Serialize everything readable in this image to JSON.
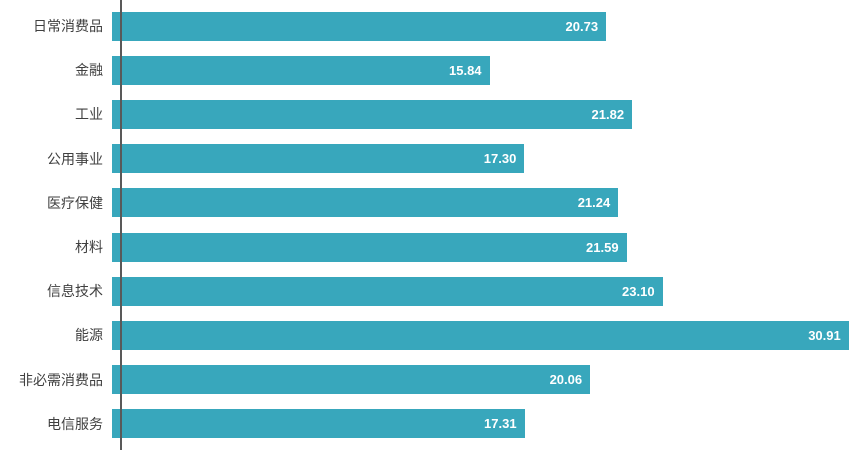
{
  "chart_data": {
    "type": "bar",
    "orientation": "horizontal",
    "title": "",
    "xlabel": "",
    "ylabel": "",
    "categories": [
      "日常消费品",
      "金融",
      "工业",
      "公用事业",
      "医疗保健",
      "材料",
      "信息技术",
      "能源",
      "非必需消费品",
      "电信服务"
    ],
    "values": [
      20.73,
      15.84,
      21.82,
      17.3,
      21.24,
      21.59,
      23.1,
      30.91,
      20.06,
      17.31
    ],
    "value_labels": [
      "20.73",
      "15.84",
      "21.82",
      "17.30",
      "21.24",
      "21.59",
      "23.10",
      "30.91",
      "20.06",
      "17.31"
    ],
    "xlim": [
      0,
      31.34
    ],
    "grid": false,
    "legend": false,
    "bar_color": "#38A7BC",
    "value_label_color": "#FFFFFF",
    "category_label_color": "#404040",
    "axis_line_color": "#595959"
  }
}
